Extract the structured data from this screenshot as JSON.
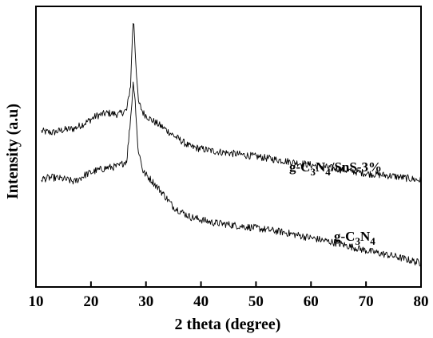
{
  "chart_data": {
    "type": "line",
    "xlabel": "2 theta (degree)",
    "ylabel": "Intensity (a.u)",
    "xlim": [
      10,
      80
    ],
    "ylim": [
      0,
      100
    ],
    "x_ticks": [
      10,
      20,
      30,
      40,
      50,
      60,
      70,
      80
    ],
    "y_ticks_shown": false,
    "grid": false,
    "noise": 1.3,
    "series": [
      {
        "name": "g-C3N4/SnS-3%",
        "label_base": "g-C",
        "label_sub1": "3",
        "label_mid": "N",
        "label_sub2": "4",
        "label_tail": "/SnS-3%",
        "points": [
          [
            11,
            55.5
          ],
          [
            13,
            55
          ],
          [
            15,
            56
          ],
          [
            17,
            56.5
          ],
          [
            19,
            58.5
          ],
          [
            21,
            61
          ],
          [
            23,
            62
          ],
          [
            25,
            61.5
          ],
          [
            26.5,
            63
          ],
          [
            27.2,
            72
          ],
          [
            27.6,
            93
          ],
          [
            27.8,
            94
          ],
          [
            28.1,
            82
          ],
          [
            28.6,
            66
          ],
          [
            29.5,
            62
          ],
          [
            31,
            59.5
          ],
          [
            33,
            57
          ],
          [
            35,
            54
          ],
          [
            38,
            50
          ],
          [
            42,
            48.5
          ],
          [
            46,
            47.5
          ],
          [
            50,
            46.5
          ],
          [
            55,
            45
          ],
          [
            60,
            43.5
          ],
          [
            65,
            42
          ],
          [
            70,
            40.5
          ],
          [
            75,
            39.5
          ],
          [
            80,
            38
          ]
        ]
      },
      {
        "name": "g-C3N4",
        "label_base": "g-C",
        "label_sub1": "3",
        "label_mid": "N",
        "label_sub2": "4",
        "label_tail": "",
        "points": [
          [
            11,
            38.5
          ],
          [
            13,
            39
          ],
          [
            15,
            38.5
          ],
          [
            17,
            37.5
          ],
          [
            19,
            40
          ],
          [
            21,
            41.5
          ],
          [
            23,
            42.5
          ],
          [
            25,
            43
          ],
          [
            26.5,
            45
          ],
          [
            27.2,
            60
          ],
          [
            27.7,
            73
          ],
          [
            28.0,
            68
          ],
          [
            28.5,
            50
          ],
          [
            29.5,
            41
          ],
          [
            31,
            38
          ],
          [
            33,
            33.5
          ],
          [
            35,
            28.5
          ],
          [
            38,
            25
          ],
          [
            42,
            23
          ],
          [
            46,
            22
          ],
          [
            50,
            21
          ],
          [
            55,
            19.5
          ],
          [
            60,
            17.5
          ],
          [
            65,
            15.5
          ],
          [
            70,
            13
          ],
          [
            75,
            11
          ],
          [
            80,
            8.5
          ]
        ]
      }
    ]
  }
}
